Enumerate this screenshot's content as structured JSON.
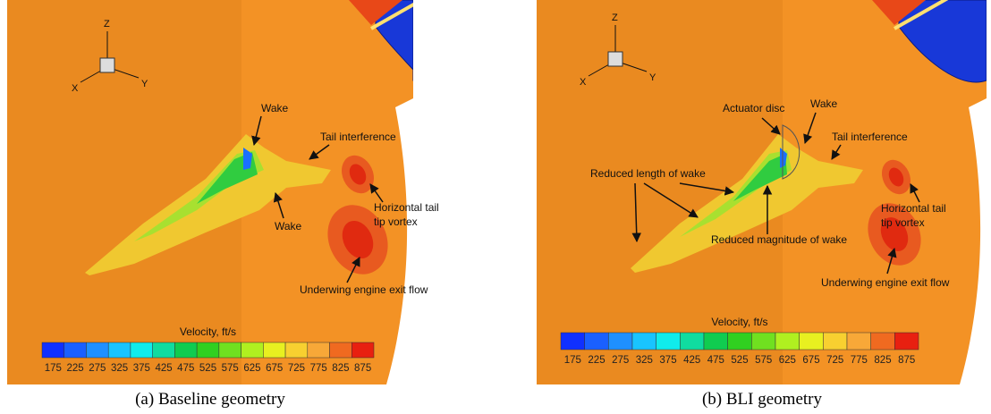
{
  "panels": [
    {
      "caption": "(a) Baseline geometry",
      "axes": {
        "z": "Z",
        "x": "X",
        "y": "Y"
      },
      "annotations": [
        [
          "Wake"
        ],
        [
          "Tail interference"
        ],
        [
          "Wake"
        ],
        [
          "Horizontal tail",
          "tip vortex"
        ],
        [
          "Underwing engine exit flow"
        ]
      ],
      "colorbar": {
        "title": "Velocity, ft/s",
        "ticks": [
          175,
          225,
          275,
          325,
          375,
          425,
          475,
          525,
          575,
          625,
          675,
          725,
          775,
          825,
          875
        ]
      }
    },
    {
      "caption": "(b) BLI geometry",
      "axes": {
        "z": "Z",
        "x": "X",
        "y": "Y"
      },
      "annotations": [
        [
          "Actuator disc"
        ],
        [
          "Wake"
        ],
        [
          "Tail interference"
        ],
        [
          "Reduced length of wake"
        ],
        [
          "Reduced magnitude of wake"
        ],
        [
          "Horizontal tail",
          "tip vortex"
        ],
        [
          "Underwing engine exit flow"
        ]
      ],
      "colorbar": {
        "title": "Velocity, ft/s",
        "ticks": [
          175,
          225,
          275,
          325,
          375,
          425,
          475,
          525,
          575,
          625,
          675,
          725,
          775,
          825,
          875
        ]
      }
    }
  ]
}
